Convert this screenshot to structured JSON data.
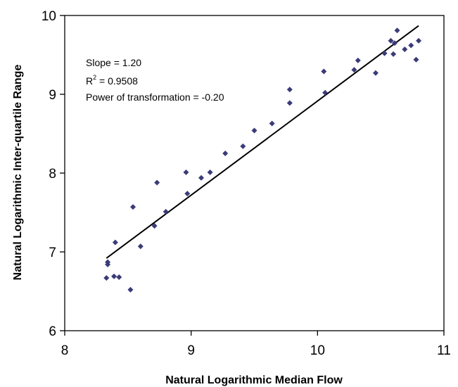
{
  "chart_data": {
    "type": "scatter",
    "title": "",
    "xlabel": "Natural Logarithmic Median Flow",
    "ylabel": "Natural Logarithmic Inter-quartile Range",
    "xlim": [
      8,
      11
    ],
    "ylim": [
      6,
      10
    ],
    "x_ticks": [
      "8",
      "9",
      "10",
      "11"
    ],
    "y_ticks": [
      "6",
      "7",
      "8",
      "9",
      "10"
    ],
    "grid": false,
    "legend": "none",
    "colors": {
      "points": "#3b3b78",
      "line": "#000000",
      "axis": "#000000"
    },
    "annotations": {
      "slope": "Slope = 1.20",
      "r2_prefix": "R",
      "r2_sup": "2",
      "r2_value": " = 0.9508",
      "power": "Power of transformation = -0.20"
    },
    "points": [
      {
        "x": 8.33,
        "y": 6.67
      },
      {
        "x": 8.34,
        "y": 6.84
      },
      {
        "x": 8.34,
        "y": 6.87
      },
      {
        "x": 8.39,
        "y": 6.69
      },
      {
        "x": 8.4,
        "y": 7.12
      },
      {
        "x": 8.43,
        "y": 6.68
      },
      {
        "x": 8.52,
        "y": 6.52
      },
      {
        "x": 8.54,
        "y": 7.57
      },
      {
        "x": 8.6,
        "y": 7.07
      },
      {
        "x": 8.71,
        "y": 7.33
      },
      {
        "x": 8.73,
        "y": 7.88
      },
      {
        "x": 8.8,
        "y": 7.51
      },
      {
        "x": 8.96,
        "y": 8.01
      },
      {
        "x": 8.97,
        "y": 7.74
      },
      {
        "x": 9.08,
        "y": 7.94
      },
      {
        "x": 9.15,
        "y": 8.01
      },
      {
        "x": 9.27,
        "y": 8.25
      },
      {
        "x": 9.41,
        "y": 8.34
      },
      {
        "x": 9.5,
        "y": 8.54
      },
      {
        "x": 9.64,
        "y": 8.63
      },
      {
        "x": 9.78,
        "y": 8.89
      },
      {
        "x": 9.78,
        "y": 9.06
      },
      {
        "x": 10.05,
        "y": 9.29
      },
      {
        "x": 10.06,
        "y": 9.02
      },
      {
        "x": 10.29,
        "y": 9.31
      },
      {
        "x": 10.32,
        "y": 9.43
      },
      {
        "x": 10.46,
        "y": 9.27
      },
      {
        "x": 10.53,
        "y": 9.52
      },
      {
        "x": 10.58,
        "y": 9.68
      },
      {
        "x": 10.6,
        "y": 9.51
      },
      {
        "x": 10.61,
        "y": 9.65
      },
      {
        "x": 10.63,
        "y": 9.81
      },
      {
        "x": 10.69,
        "y": 9.57
      },
      {
        "x": 10.74,
        "y": 9.62
      },
      {
        "x": 10.78,
        "y": 9.44
      },
      {
        "x": 10.8,
        "y": 9.68
      }
    ],
    "fit_line": {
      "x": [
        8.33,
        10.8
      ],
      "y": [
        6.92,
        9.87
      ]
    }
  }
}
